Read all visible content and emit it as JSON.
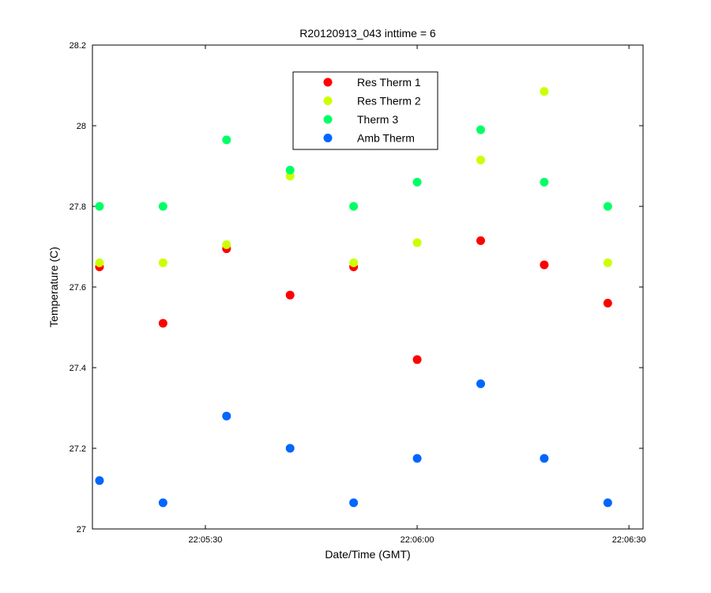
{
  "chart_data": {
    "type": "scatter",
    "title": "R20120913_043 inttime = 6",
    "xlabel": "Date/Time (GMT)",
    "ylabel": "Temperature (C)",
    "x_format": "HH:MM:SS",
    "xlim": [
      "22:05:14",
      "22:06:32"
    ],
    "ylim": [
      27,
      28.2
    ],
    "x_ticks": [
      "22:05:30",
      "22:06:00",
      "22:06:30"
    ],
    "y_ticks": [
      27,
      27.2,
      27.4,
      27.6,
      27.8,
      28,
      28.2
    ],
    "y_tick_labels": [
      "27",
      "27.2",
      "27.4",
      "27.6",
      "27.8",
      "28",
      "28.2"
    ],
    "grid": false,
    "legend_position": "top-center",
    "x": [
      "22:05:15",
      "22:05:24",
      "22:05:33",
      "22:05:42",
      "22:05:51",
      "22:06:00",
      "22:06:09",
      "22:06:18",
      "22:06:27"
    ],
    "series": [
      {
        "name": "Res Therm 1",
        "color": "#ff0000",
        "values": [
          27.65,
          27.51,
          27.695,
          27.58,
          27.65,
          27.42,
          27.715,
          27.655,
          27.56
        ]
      },
      {
        "name": "Res Therm 2",
        "color": "#ccff00",
        "values": [
          27.66,
          27.66,
          27.705,
          27.875,
          27.66,
          27.71,
          27.915,
          28.085,
          27.66
        ]
      },
      {
        "name": "Therm 3",
        "color": "#00ff66",
        "values": [
          27.8,
          27.8,
          27.965,
          27.89,
          27.8,
          27.86,
          27.99,
          27.86,
          27.8
        ]
      },
      {
        "name": "Amb Therm",
        "color": "#0066ff",
        "values": [
          27.12,
          27.065,
          27.28,
          27.2,
          27.065,
          27.175,
          27.36,
          27.175,
          27.065
        ]
      }
    ]
  }
}
